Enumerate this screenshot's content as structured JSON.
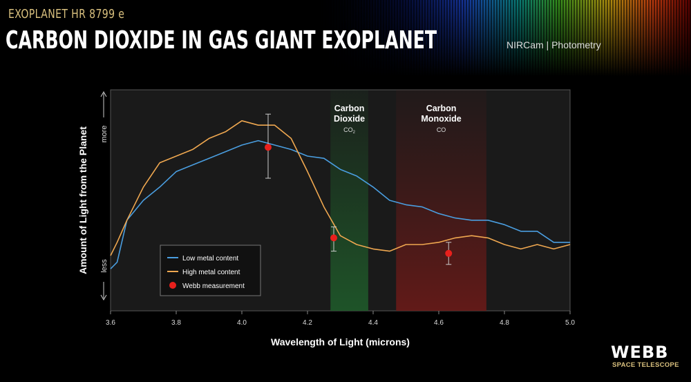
{
  "header": {
    "subtitle": "EXOPLANET HR 8799 e",
    "title": "CARBON DIOXIDE IN GAS GIANT EXOPLANET",
    "instrument": "NIRCam | Photometry"
  },
  "logo": {
    "name": "WEBB",
    "tagline": "SPACE TELESCOPE"
  },
  "chart_data": {
    "type": "line",
    "title": "",
    "xlabel": "Wavelength of Light (microns)",
    "ylabel": "Amount of Light from the Planet",
    "ylabel_high": "more",
    "ylabel_low": "less",
    "xlim": [
      3.6,
      5.0
    ],
    "ylim": [
      0,
      1
    ],
    "xticks": [
      3.6,
      3.8,
      4.0,
      4.2,
      4.4,
      4.6,
      4.8,
      5.0
    ],
    "xtick_labels": [
      "3.6",
      "3.8",
      "4.0",
      "4.2",
      "4.4",
      "4.6",
      "4.8",
      "5.0"
    ],
    "grid": false,
    "legend_placement": "bottom-left",
    "bands": [
      {
        "label_line1": "Carbon",
        "label_line2": "Dioxide",
        "formula": "CO",
        "formula_sub": "2",
        "range": [
          4.27,
          4.385
        ],
        "color": "#1f5a2a"
      },
      {
        "label_line1": "Carbon",
        "label_line2": "Monoxide",
        "formula": "CO",
        "formula_sub": "",
        "range": [
          4.47,
          4.745
        ],
        "color": "#5a1a18"
      }
    ],
    "x": [
      3.6,
      3.62,
      3.65,
      3.7,
      3.75,
      3.8,
      3.85,
      3.9,
      3.95,
      4.0,
      4.05,
      4.1,
      4.15,
      4.2,
      4.25,
      4.3,
      4.35,
      4.4,
      4.45,
      4.5,
      4.55,
      4.6,
      4.65,
      4.7,
      4.75,
      4.8,
      4.85,
      4.9,
      4.95,
      5.0
    ],
    "series": [
      {
        "name": "Low metal content",
        "color": "#4a9ee0",
        "values": [
          0.19,
          0.22,
          0.41,
          0.5,
          0.56,
          0.63,
          0.66,
          0.69,
          0.72,
          0.75,
          0.77,
          0.75,
          0.73,
          0.7,
          0.69,
          0.64,
          0.61,
          0.56,
          0.5,
          0.48,
          0.47,
          0.44,
          0.42,
          0.41,
          0.41,
          0.39,
          0.36,
          0.36,
          0.31,
          0.31
        ]
      },
      {
        "name": "High metal content",
        "color": "#f0a850",
        "values": [
          0.25,
          0.31,
          0.41,
          0.56,
          0.67,
          0.7,
          0.73,
          0.78,
          0.81,
          0.86,
          0.84,
          0.84,
          0.78,
          0.63,
          0.47,
          0.34,
          0.3,
          0.28,
          0.27,
          0.3,
          0.3,
          0.31,
          0.33,
          0.34,
          0.33,
          0.3,
          0.28,
          0.3,
          0.28,
          0.3
        ]
      }
    ],
    "measurements": {
      "name": "Webb measurement",
      "color": "#e8201c",
      "points": [
        {
          "x": 4.08,
          "y": 0.74,
          "y_low": 0.6,
          "y_high": 0.89
        },
        {
          "x": 4.28,
          "y": 0.33,
          "y_low": 0.27,
          "y_high": 0.38
        },
        {
          "x": 4.63,
          "y": 0.26,
          "y_low": 0.21,
          "y_high": 0.31
        }
      ]
    }
  }
}
